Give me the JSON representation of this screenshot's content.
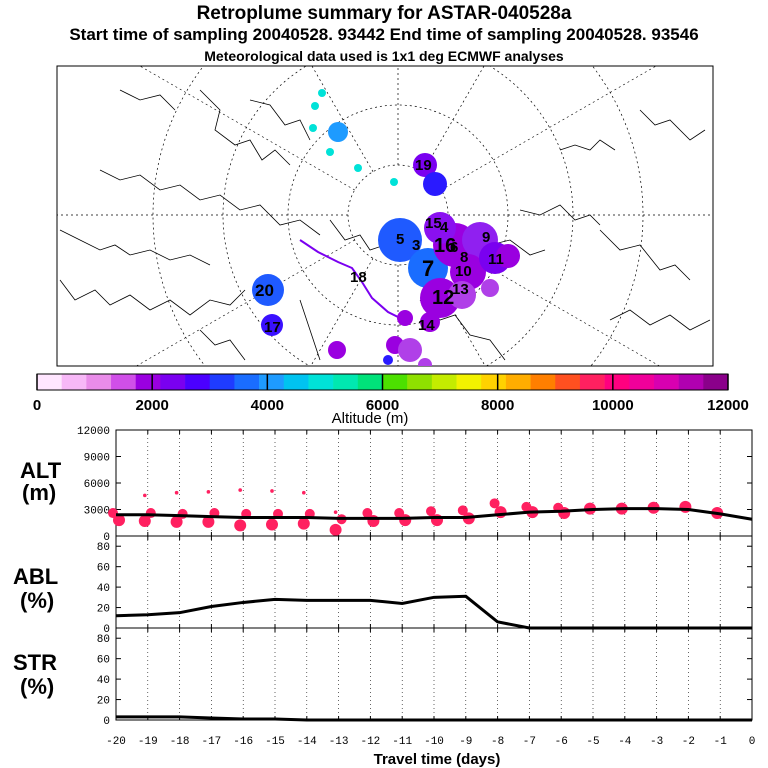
{
  "header": {
    "title": "Retroplume summary for ASTAR-040528a",
    "sampling": "Start time of sampling 20040528. 93442      End time of sampling 20040528. 93546",
    "met": "Meteorological data used is 1x1 deg ECMWF analyses"
  },
  "colorbar": {
    "label": "Altitude  (m)",
    "tick_labels": [
      "0",
      "2000",
      "4000",
      "6000",
      "8000",
      "10000",
      "12000"
    ],
    "colors": [
      "#ffe6ff",
      "#f7b8f7",
      "#e98ce9",
      "#d04fe8",
      "#9a00e0",
      "#7a00f0",
      "#4b00ff",
      "#1f3cff",
      "#1a6dff",
      "#1e9bff",
      "#00c3f0",
      "#00e2d8",
      "#00e8b0",
      "#00e27a",
      "#4ce000",
      "#8fe000",
      "#c4ec00",
      "#f2f200",
      "#ffd200",
      "#ffad00",
      "#ff7f00",
      "#ff5020",
      "#ff2060",
      "#ff007f",
      "#f0009a",
      "#d800b0",
      "#b000b0",
      "#8a008a"
    ]
  },
  "map": {
    "labels": [
      {
        "t": "5",
        "c": "#1f5aff"
      },
      {
        "t": "7",
        "c": "#1f5aff"
      },
      {
        "t": "3",
        "c": "#4b00ff"
      },
      {
        "t": "4",
        "c": "#6a10ff"
      },
      {
        "t": "8",
        "c": "#7a00f0"
      },
      {
        "t": "6",
        "c": "#8a10f0"
      },
      {
        "t": "9",
        "c": "#9020f0"
      },
      {
        "t": "10",
        "c": "#9a00e0"
      },
      {
        "t": "11",
        "c": "#9a00e0"
      },
      {
        "t": "12",
        "c": "#9a00e0"
      },
      {
        "t": "13",
        "c": "#b040e8"
      },
      {
        "t": "14",
        "c": "#9a00e0"
      },
      {
        "t": "15",
        "c": "#9a00e0"
      },
      {
        "t": "16",
        "c": "#9a00e0"
      },
      {
        "t": "17",
        "c": "#2a1aff"
      },
      {
        "t": "18",
        "c": "#9a00e0"
      },
      {
        "t": "19",
        "c": "#7a00f0"
      },
      {
        "t": "20",
        "c": "#1f5aff"
      }
    ]
  },
  "chart_data": [
    {
      "type": "scatter",
      "title": "ALT (m)",
      "ylabel": "ALT (m)",
      "xlabel": "Travel time (days)",
      "ylim": [
        0,
        12000
      ],
      "yticks": [
        "0",
        "3000",
        "6000",
        "9000",
        "12000"
      ],
      "line": {
        "x": [
          -20,
          -19,
          -18,
          -17,
          -16,
          -15,
          -14,
          -13,
          -12,
          -11,
          -10,
          -9,
          -8,
          -7,
          -6,
          -5,
          -4,
          -3,
          -2,
          -1,
          0
        ],
        "values": [
          2400,
          2400,
          2300,
          2200,
          2100,
          2100,
          2100,
          2000,
          2000,
          2000,
          2100,
          2100,
          2400,
          2700,
          2800,
          3000,
          3100,
          3100,
          3000,
          2500,
          1900
        ]
      },
      "clusters": [
        {
          "x": -20,
          "values": [
            2600,
            1800
          ]
        },
        {
          "x": -19,
          "values": [
            4600,
            2600,
            1700
          ]
        },
        {
          "x": -18,
          "values": [
            4900,
            2500,
            1600
          ]
        },
        {
          "x": -17,
          "values": [
            5000,
            2600,
            1600
          ]
        },
        {
          "x": -16,
          "values": [
            5200,
            2500,
            1200
          ]
        },
        {
          "x": -15,
          "values": [
            5100,
            2500,
            1300
          ]
        },
        {
          "x": -14,
          "values": [
            4900,
            2500,
            1400
          ]
        },
        {
          "x": -13,
          "values": [
            2700,
            1900,
            700
          ]
        },
        {
          "x": -12,
          "values": [
            2600,
            1700
          ]
        },
        {
          "x": -11,
          "values": [
            2600,
            1800
          ]
        },
        {
          "x": -10,
          "values": [
            2800,
            1800
          ]
        },
        {
          "x": -9,
          "values": [
            2900,
            2000
          ]
        },
        {
          "x": -8,
          "values": [
            3700,
            2700
          ]
        },
        {
          "x": -7,
          "values": [
            3300,
            2700
          ]
        },
        {
          "x": -6,
          "values": [
            3200,
            2600
          ]
        },
        {
          "x": -5,
          "values": [
            3100
          ]
        },
        {
          "x": -4,
          "values": [
            3100
          ]
        },
        {
          "x": -3,
          "values": [
            3200
          ]
        },
        {
          "x": -2,
          "values": [
            3300
          ]
        },
        {
          "x": -1,
          "values": [
            2600
          ]
        }
      ]
    },
    {
      "type": "line",
      "title": "ABL (%)",
      "ylabel": "ABL (%)",
      "xlabel": "Travel time (days)",
      "ylim": [
        0,
        90
      ],
      "yticks": [
        "0",
        "20",
        "40",
        "60",
        "80"
      ],
      "x": [
        -20,
        -19,
        -18,
        -17,
        -16,
        -15,
        -14,
        -13,
        -12,
        -11,
        -10,
        -9,
        -8,
        -7,
        -6,
        -5,
        -4,
        -3,
        -2,
        -1,
        0
      ],
      "values": [
        12,
        13,
        15,
        21,
        25,
        28,
        27,
        27,
        27,
        24,
        30,
        31,
        6,
        0,
        0,
        0,
        0,
        0,
        0,
        0,
        0
      ]
    },
    {
      "type": "line",
      "title": "STR (%)",
      "ylabel": "STR (%)",
      "xlabel": "Travel time (days)",
      "ylim": [
        0,
        90
      ],
      "yticks": [
        "0",
        "20",
        "40",
        "60",
        "80"
      ],
      "x": [
        -20,
        -19,
        -18,
        -17,
        -16,
        -15,
        -14,
        -13,
        -12,
        -11,
        -10,
        -9,
        -8,
        -7,
        -6,
        -5,
        -4,
        -3,
        -2,
        -1,
        0
      ],
      "values": [
        3,
        3,
        3,
        2,
        1,
        1,
        0,
        0,
        0,
        0,
        0,
        0,
        0,
        0,
        0,
        0,
        0,
        0,
        0,
        0,
        0
      ]
    }
  ],
  "xaxis": {
    "label": "Travel time (days)",
    "ticks": [
      "-20",
      "-19",
      "-18",
      "-17",
      "-16",
      "-15",
      "-14",
      "-13",
      "-12",
      "-11",
      "-10",
      "-9",
      "-8",
      "-7",
      "-6",
      "-5",
      "-4",
      "-3",
      "-2",
      "-1",
      "0"
    ]
  },
  "panels": {
    "alt_label_1": "ALT",
    "alt_label_2": "(m)",
    "abl_label_1": "ABL",
    "abl_label_2": "(%)",
    "str_label_1": "STR",
    "str_label_2": "(%)"
  },
  "colors": {
    "marker": "#ff2060",
    "line": "#000000"
  }
}
